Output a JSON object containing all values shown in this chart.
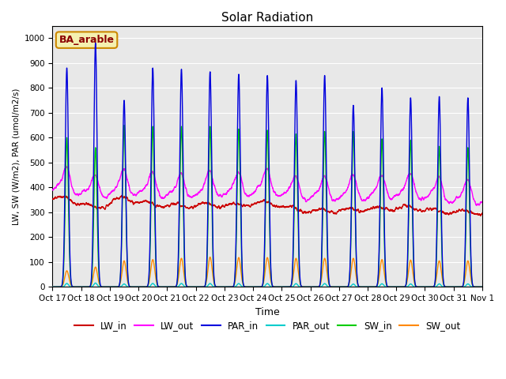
{
  "title": "Solar Radiation",
  "xlabel": "Time",
  "ylabel": "LW, SW (W/m2), PAR (umol/m2/s)",
  "annotation": "BA_arable",
  "ylim": [
    0,
    1050
  ],
  "background_color": "#e8e8e8",
  "series": {
    "LW_in": {
      "color": "#cc0000",
      "lw": 1.0
    },
    "LW_out": {
      "color": "#ff00ff",
      "lw": 1.0
    },
    "PAR_in": {
      "color": "#0000dd",
      "lw": 1.0
    },
    "PAR_out": {
      "color": "#00cccc",
      "lw": 1.0
    },
    "SW_in": {
      "color": "#00cc00",
      "lw": 1.0
    },
    "SW_out": {
      "color": "#ff8800",
      "lw": 1.0
    }
  },
  "xtick_labels": [
    "Oct 17",
    "Oct 18",
    "Oct 19",
    "Oct 20",
    "Oct 21",
    "Oct 22",
    "Oct 23",
    "Oct 24",
    "Oct 25",
    "Oct 26",
    "Oct 27",
    "Oct 28",
    "Oct 29",
    "Oct 30",
    "Oct 31",
    "Nov 1"
  ],
  "num_days": 15,
  "points_per_day": 288,
  "par_in_peaks": [
    880,
    980,
    750,
    880,
    875,
    865,
    855,
    850,
    830,
    850,
    730,
    800,
    760,
    765,
    760
  ],
  "sw_in_peaks": [
    600,
    560,
    650,
    645,
    645,
    645,
    635,
    630,
    615,
    625,
    625,
    595,
    590,
    565,
    560
  ],
  "sw_out_peaks": [
    65,
    80,
    105,
    110,
    115,
    120,
    118,
    118,
    115,
    115,
    115,
    110,
    108,
    105,
    105
  ],
  "lw_in_base": [
    355,
    315,
    360,
    330,
    325,
    330,
    330,
    340,
    310,
    305,
    310,
    315,
    320,
    305,
    300
  ],
  "lw_out_base": [
    395,
    365,
    390,
    375,
    370,
    380,
    375,
    390,
    360,
    360,
    365,
    365,
    375,
    355,
    345
  ]
}
